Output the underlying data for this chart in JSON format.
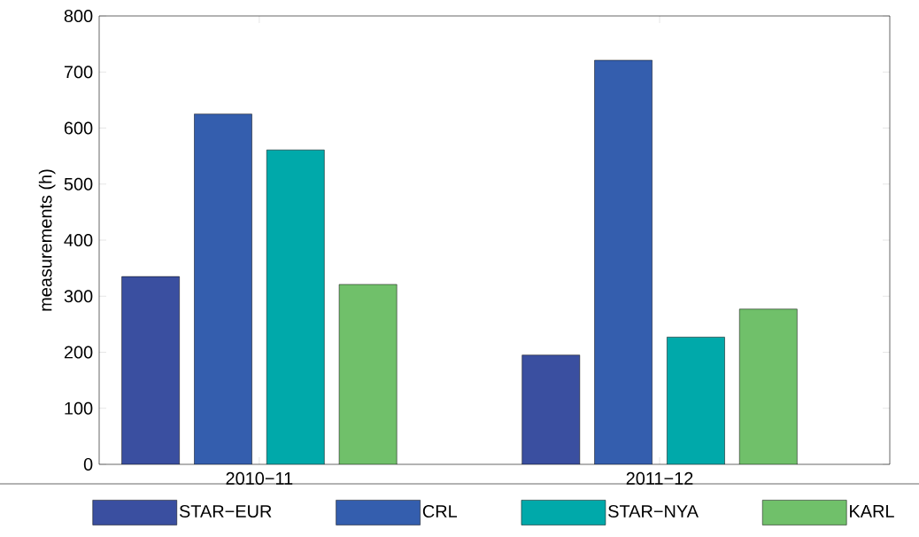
{
  "chart_data": {
    "type": "bar",
    "ylabel": "measurements (h)",
    "categories": [
      "2010−11",
      "2011−12"
    ],
    "series": [
      {
        "name": "STAR−EUR",
        "color": "#3a4fa0",
        "values": [
          335,
          195
        ]
      },
      {
        "name": "CRL",
        "color": "#345eae",
        "values": [
          625,
          721
        ]
      },
      {
        "name": "STAR−NYA",
        "color": "#00a9aa",
        "values": [
          561,
          227
        ]
      },
      {
        "name": "KARL",
        "color": "#70c06a",
        "values": [
          321,
          277
        ]
      }
    ],
    "ylim": [
      0,
      800
    ],
    "yticks": [
      0,
      100,
      200,
      300,
      400,
      500,
      600,
      700,
      800
    ],
    "legend": "bottom"
  }
}
